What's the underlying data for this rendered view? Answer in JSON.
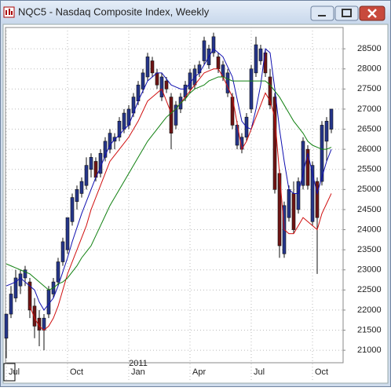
{
  "chart_data": {
    "type": "candlestick",
    "title": "NQC5 - Nasdaq Composite Index, Weekly",
    "categories": [
      "Jul",
      null,
      null,
      null,
      null,
      null,
      null,
      null,
      null,
      null,
      null,
      null,
      null,
      "Oct",
      null,
      null,
      null,
      null,
      null,
      null,
      null,
      null,
      null,
      null,
      null,
      null,
      "Jan",
      null,
      null,
      null,
      null,
      null,
      null,
      null,
      null,
      null,
      null,
      null,
      null,
      "Apr",
      null,
      null,
      null,
      null,
      null,
      null,
      null,
      null,
      null,
      null,
      null,
      null,
      "Jul",
      null,
      null,
      null,
      null,
      null,
      null,
      null,
      null,
      null,
      null,
      null,
      null,
      "Oct",
      null,
      null,
      null,
      null
    ],
    "annotations": [
      {
        "text": "2011",
        "category": 28
      }
    ],
    "up_color": "#25358a",
    "down_color": "#6e1414",
    "open": [
      21300,
      21900,
      22300,
      22600,
      22800,
      22700,
      22100,
      21800,
      21500,
      21900,
      22400,
      22700,
      23200,
      23500,
      24200,
      24700,
      24900,
      25100,
      25500,
      25700,
      25400,
      25800,
      26000,
      26200,
      26300,
      26500,
      26600,
      26900,
      27200,
      27500,
      27800,
      28200,
      27900,
      27300,
      27700,
      27300,
      26600,
      27000,
      27300,
      27500,
      27600,
      27900,
      28200,
      28100,
      28400,
      28300,
      27800,
      27400,
      27300,
      26100,
      26000,
      26300,
      27000,
      27900,
      28200,
      28400,
      27800,
      27300,
      25400,
      23400,
      24300,
      24900,
      24500,
      25100,
      26000,
      24200,
      25200,
      25200,
      26200,
      26500
    ],
    "high": [
      21900,
      22600,
      23000,
      23000,
      23100,
      22800,
      22300,
      22000,
      21900,
      22600,
      22800,
      23300,
      23800,
      24300,
      24900,
      25100,
      25300,
      25800,
      25900,
      25800,
      26000,
      26300,
      26500,
      26400,
      26800,
      27000,
      27100,
      27400,
      27700,
      28000,
      28400,
      28300,
      28000,
      27900,
      27800,
      27400,
      27200,
      27400,
      27700,
      28000,
      28100,
      28200,
      28800,
      28600,
      28900,
      28400,
      28200,
      28000,
      27400,
      26700,
      26400,
      26900,
      28100,
      28800,
      28600,
      28500,
      28000,
      27400,
      25500,
      24700,
      25100,
      25200,
      25300,
      26300,
      26100,
      25700,
      25300,
      26700,
      26800,
      27000
    ],
    "low": [
      20800,
      21800,
      22200,
      22400,
      22600,
      21800,
      21300,
      21100,
      21000,
      21800,
      22300,
      22600,
      23100,
      23400,
      24100,
      24500,
      24800,
      25000,
      25300,
      25200,
      25300,
      25700,
      25900,
      26000,
      26200,
      26400,
      26500,
      26800,
      27100,
      27400,
      27700,
      27800,
      27500,
      27200,
      27400,
      26000,
      26500,
      26900,
      27200,
      27400,
      27500,
      27800,
      28100,
      28000,
      28300,
      27900,
      27700,
      27300,
      26500,
      26000,
      25900,
      26200,
      26900,
      27800,
      28100,
      27800,
      27000,
      24900,
      23300,
      23300,
      24200,
      23900,
      24400,
      25000,
      25000,
      24100,
      22900,
      25100,
      25700,
      26400
    ],
    "close": [
      21900,
      22400,
      22800,
      22900,
      23000,
      22000,
      21600,
      21500,
      21800,
      22500,
      22700,
      23200,
      23700,
      24300,
      24800,
      25000,
      25200,
      25600,
      25800,
      25300,
      25900,
      26200,
      26400,
      26300,
      26700,
      26900,
      27000,
      27300,
      27600,
      27900,
      28300,
      27900,
      27600,
      27800,
      27500,
      26400,
      27100,
      27300,
      27600,
      27900,
      28000,
      28100,
      28700,
      28500,
      28800,
      28000,
      28100,
      27900,
      26600,
      26600,
      26300,
      26800,
      28000,
      28600,
      28500,
      27900,
      27100,
      25000,
      23600,
      24600,
      25000,
      24000,
      25200,
      26200,
      25100,
      25600,
      24300,
      26600,
      26700,
      27000
    ],
    "series": [
      {
        "color": "#1010b0",
        "values": [
          22600,
          22650,
          22700,
          22800,
          22700,
          22600,
          22500,
          22200,
          22000,
          22150,
          22300,
          22600,
          22950,
          23300,
          23700,
          24050,
          24400,
          24700,
          25000,
          25300,
          25550,
          25850,
          26100,
          26250,
          26350,
          26500,
          26600,
          26900,
          27200,
          27450,
          27700,
          27800,
          27900,
          27900,
          27750,
          27600,
          27550,
          27500,
          27500,
          27650,
          27800,
          27900,
          28100,
          28300,
          28500,
          28400,
          28300,
          28050,
          27800,
          27250,
          26700,
          26550,
          26500,
          27000,
          27600,
          28500,
          28400,
          27500,
          26500,
          25700,
          25000,
          24900,
          24900,
          25400,
          25900,
          25400,
          24900,
          25300,
          25700,
          26000
        ]
      },
      {
        "color": "#d01010",
        "values": [
          null,
          null,
          null,
          null,
          null,
          22100,
          21800,
          21600,
          21500,
          21600,
          21800,
          22100,
          22500,
          22900,
          23200,
          23500,
          23800,
          24100,
          24500,
          24800,
          25100,
          25400,
          25700,
          25850,
          26000,
          26150,
          26300,
          26500,
          26700,
          26950,
          27200,
          27300,
          27400,
          27500,
          27200,
          26900,
          27000,
          27150,
          27300,
          27450,
          27600,
          27750,
          27900,
          27950,
          28000,
          28000,
          27800,
          27550,
          27300,
          26650,
          26000,
          26200,
          26500,
          26800,
          27100,
          27400,
          27200,
          26800,
          25400,
          24000,
          23900,
          23900,
          24100,
          24300,
          24200,
          24100,
          24000,
          24400,
          24650,
          24900
        ]
      },
      {
        "color": "#108010",
        "values": [
          23150,
          23100,
          23050,
          23000,
          22950,
          22900,
          22800,
          22700,
          22600,
          22500,
          22550,
          22650,
          22700,
          22800,
          22950,
          23100,
          23300,
          23450,
          23600,
          23850,
          24100,
          24350,
          24600,
          24800,
          25000,
          25200,
          25400,
          25600,
          25800,
          26000,
          26200,
          26350,
          26500,
          26650,
          26800,
          26900,
          27000,
          27150,
          27250,
          27400,
          27500,
          27550,
          27600,
          27700,
          27750,
          27800,
          27800,
          27750,
          27700,
          27700,
          27700,
          27700,
          27700,
          27700,
          27700,
          27700,
          27600,
          27450,
          27300,
          27100,
          26900,
          26700,
          26550,
          26400,
          26200,
          26100,
          26050,
          26000,
          26000,
          26050
        ]
      }
    ],
    "ylim": [
      20690,
      29030
    ],
    "yticks": [
      21000,
      21500,
      22000,
      22500,
      23000,
      23500,
      24000,
      24500,
      25000,
      25500,
      26000,
      26500,
      27000,
      27500,
      28000,
      28500
    ],
    "grid": true
  }
}
